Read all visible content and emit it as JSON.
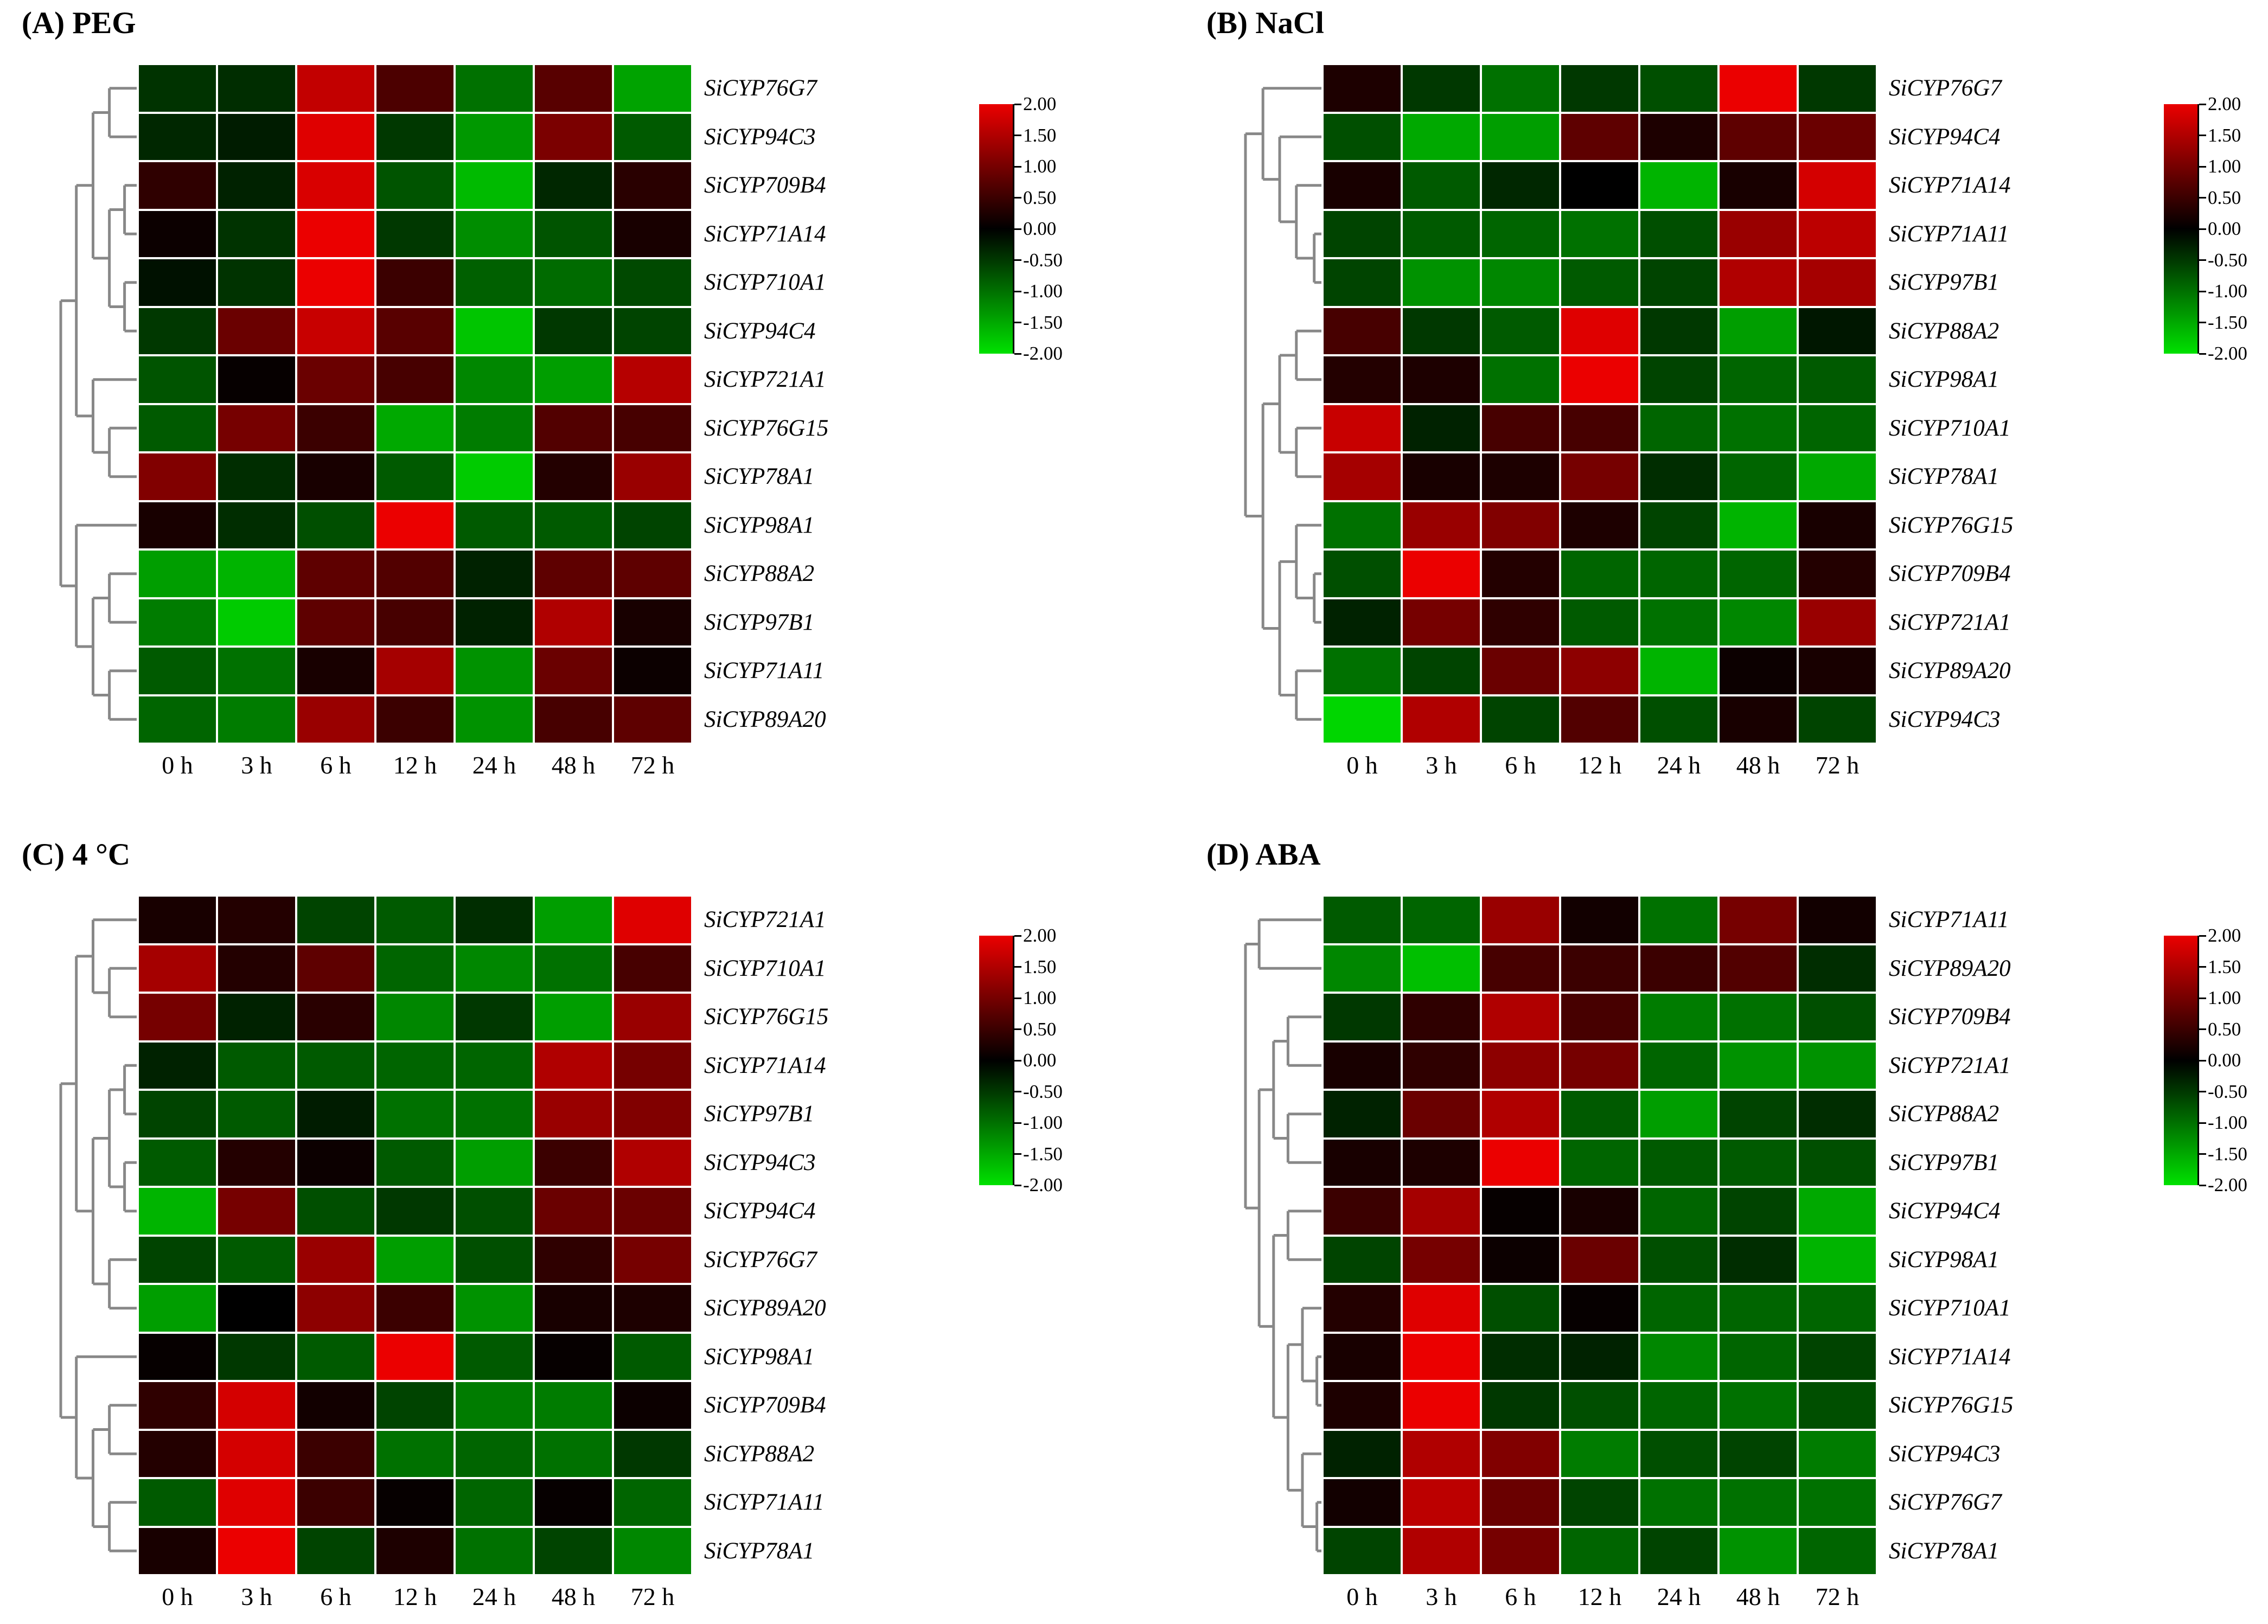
{
  "time_labels": [
    "0 h",
    "3 h",
    "6 h",
    "12 h",
    "24 h",
    "48 h",
    "72 h"
  ],
  "colorbar": {
    "min": -2,
    "max": 2,
    "tick_labels": [
      "2.00",
      "1.50",
      "1.00",
      "0.50",
      "0.00",
      "-0.50",
      "-1.00",
      "-1.50",
      "-2.00"
    ]
  },
  "colors": {
    "heat_positive_max": "#eb0000",
    "heat_zero": "#000000",
    "heat_negative_max": "#00e100",
    "dendrogram_line": "#888888",
    "background": "#ffffff"
  },
  "chart_data": [
    {
      "type": "heatmap",
      "panel": "A",
      "title": "(A) PEG",
      "x": [
        "0 h",
        "3 h",
        "6 h",
        "12 h",
        "24 h",
        "48 h",
        "72 h"
      ],
      "genes": [
        "SiCYP76G7",
        "SiCYP94C3",
        "SiCYP709B4",
        "SiCYP71A14",
        "SiCYP710A1",
        "SiCYP94C4",
        "SiCYP721A1",
        "SiCYP76G15",
        "SiCYP78A1",
        "SiCYP98A1",
        "SiCYP88A2",
        "SiCYP97B1",
        "SiCYP71A11",
        "SiCYP89A20"
      ],
      "values": [
        [
          -0.45,
          -0.4,
          1.65,
          0.65,
          -1.0,
          0.75,
          -1.45
        ],
        [
          -0.35,
          -0.25,
          1.9,
          -0.5,
          -1.35,
          1.05,
          -0.8
        ],
        [
          0.4,
          -0.3,
          1.85,
          -0.75,
          -1.65,
          -0.35,
          0.35
        ],
        [
          0.1,
          -0.45,
          2.0,
          -0.5,
          -1.25,
          -0.75,
          0.2
        ],
        [
          -0.15,
          -0.45,
          2.0,
          0.5,
          -0.85,
          -0.95,
          -0.65
        ],
        [
          -0.5,
          0.9,
          1.7,
          0.75,
          -1.75,
          -0.5,
          -0.6
        ],
        [
          -0.75,
          0.05,
          0.9,
          0.6,
          -1.2,
          -1.4,
          1.55
        ],
        [
          -0.8,
          1.0,
          0.5,
          -1.5,
          -1.1,
          0.7,
          0.6
        ],
        [
          1.1,
          -0.4,
          0.2,
          -0.8,
          -1.8,
          0.3,
          1.3
        ],
        [
          0.2,
          -0.4,
          -0.7,
          2.0,
          -0.8,
          -0.8,
          -0.6
        ],
        [
          -1.4,
          -1.6,
          0.8,
          0.7,
          -0.3,
          0.8,
          0.8
        ],
        [
          -1.1,
          -1.8,
          0.8,
          0.6,
          -0.3,
          1.5,
          0.2
        ],
        [
          -0.8,
          -1.0,
          0.2,
          1.4,
          -1.3,
          0.9,
          0.1
        ],
        [
          -0.9,
          -1.1,
          1.3,
          0.5,
          -1.3,
          0.6,
          0.8
        ]
      ],
      "dendrogram": [
        1.0,
        [
          0.795,
          [
            0.575,
            [
              0.36,
              0,
              1
            ],
            [
              0.36,
              [
                0.16,
                2,
                3
              ],
              [
                0.16,
                4,
                5
              ]
            ]
          ],
          [
            0.575,
            6,
            [
              0.36,
              7,
              8
            ]
          ]
        ],
        [
          0.795,
          9,
          [
            0.575,
            [
              0.36,
              10,
              11
            ],
            [
              0.36,
              12,
              13
            ]
          ]
        ]
      ]
    },
    {
      "type": "heatmap",
      "panel": "B",
      "title": "(B) NaCl",
      "x": [
        "0 h",
        "3 h",
        "6 h",
        "12 h",
        "24 h",
        "48 h",
        "72 h"
      ],
      "genes": [
        "SiCYP76G7",
        "SiCYP94C4",
        "SiCYP71A14",
        "SiCYP71A11",
        "SiCYP97B1",
        "SiCYP88A2",
        "SiCYP98A1",
        "SiCYP710A1",
        "SiCYP78A1",
        "SiCYP76G15",
        "SiCYP709B4",
        "SiCYP721A1",
        "SiCYP89A20",
        "SiCYP94C3"
      ],
      "values": [
        [
          0.25,
          -0.5,
          -1.0,
          -0.5,
          -0.7,
          2.0,
          -0.5
        ],
        [
          -0.7,
          -1.5,
          -1.4,
          0.8,
          0.25,
          0.8,
          0.9
        ],
        [
          0.2,
          -0.8,
          -0.35,
          0.0,
          -1.6,
          0.2,
          1.8
        ],
        [
          -0.6,
          -0.8,
          -0.9,
          -1.0,
          -0.7,
          1.3,
          1.6
        ],
        [
          -0.6,
          -1.3,
          -1.2,
          -0.8,
          -0.6,
          1.5,
          1.4
        ],
        [
          0.6,
          -0.5,
          -0.8,
          1.9,
          -0.5,
          -1.4,
          -0.2
        ],
        [
          0.3,
          0.25,
          -1.0,
          2.0,
          -0.6,
          -0.9,
          -0.8
        ],
        [
          1.7,
          -0.3,
          0.6,
          0.6,
          -0.9,
          -1.0,
          -0.9
        ],
        [
          1.4,
          0.2,
          0.25,
          1.0,
          -0.4,
          -0.9,
          -1.5
        ],
        [
          -1.0,
          1.3,
          1.1,
          0.25,
          -0.6,
          -1.6,
          0.2
        ],
        [
          -0.7,
          2.0,
          0.3,
          -0.9,
          -0.9,
          -0.9,
          0.3
        ],
        [
          -0.3,
          1.0,
          0.4,
          -0.8,
          -1.0,
          -1.2,
          1.3
        ],
        [
          -1.0,
          -0.6,
          0.9,
          1.2,
          -1.6,
          0.1,
          0.2
        ],
        [
          -1.9,
          1.5,
          -0.6,
          0.7,
          -0.7,
          0.2,
          -0.6
        ]
      ],
      "dendrogram": [
        1.0,
        [
          0.77,
          0,
          [
            0.55,
            1,
            [
              0.33,
              2,
              [
                0.095,
                3,
                4
              ]
            ]
          ]
        ],
        [
          0.77,
          [
            0.55,
            [
              0.33,
              5,
              6
            ],
            [
              0.33,
              7,
              8
            ]
          ],
          [
            0.55,
            [
              0.33,
              9,
              [
                0.095,
                10,
                11
              ]
            ],
            [
              0.33,
              12,
              13
            ]
          ]
        ]
      ]
    },
    {
      "type": "heatmap",
      "panel": "C",
      "title": "(C) 4 °C",
      "x": [
        "0 h",
        "3 h",
        "6 h",
        "12 h",
        "24 h",
        "48 h",
        "72 h"
      ],
      "genes": [
        "SiCYP721A1",
        "SiCYP710A1",
        "SiCYP76G15",
        "SiCYP71A14",
        "SiCYP97B1",
        "SiCYP94C3",
        "SiCYP94C4",
        "SiCYP76G7",
        "SiCYP89A20",
        "SiCYP98A1",
        "SiCYP709B4",
        "SiCYP88A2",
        "SiCYP71A11",
        "SiCYP78A1"
      ],
      "values": [
        [
          0.2,
          0.3,
          -0.6,
          -0.8,
          -0.4,
          -1.4,
          1.9
        ],
        [
          1.4,
          0.3,
          0.8,
          -0.9,
          -1.2,
          -1.0,
          0.6
        ],
        [
          1.0,
          -0.3,
          0.35,
          -1.2,
          -0.5,
          -1.4,
          1.3
        ],
        [
          -0.3,
          -0.8,
          -0.8,
          -0.9,
          -0.9,
          1.5,
          1.0
        ],
        [
          -0.6,
          -0.8,
          -0.25,
          -1.0,
          -1.0,
          1.3,
          1.1
        ],
        [
          -0.8,
          0.3,
          0.1,
          -0.8,
          -1.4,
          0.5,
          1.5
        ],
        [
          -1.6,
          1.0,
          -0.7,
          -0.5,
          -0.7,
          0.9,
          0.9
        ],
        [
          -0.6,
          -0.8,
          1.3,
          -1.4,
          -0.7,
          0.4,
          1.0
        ],
        [
          -1.4,
          0.0,
          1.2,
          0.5,
          -1.3,
          0.2,
          0.25
        ],
        [
          0.05,
          -0.5,
          -0.8,
          2.0,
          -0.8,
          0.05,
          -0.8
        ],
        [
          0.4,
          1.8,
          0.15,
          -0.6,
          -1.1,
          -1.1,
          0.1
        ],
        [
          0.3,
          1.8,
          0.5,
          -1.0,
          -0.9,
          -1.0,
          -0.5
        ],
        [
          -0.8,
          1.9,
          0.5,
          0.05,
          -0.9,
          0.05,
          -0.9
        ],
        [
          0.2,
          2.0,
          -0.6,
          0.25,
          -1.0,
          -0.6,
          -1.2
        ]
      ],
      "dendrogram": [
        1.0,
        [
          0.795,
          [
            0.575,
            0,
            [
              0.36,
              1,
              2
            ]
          ],
          [
            0.575,
            [
              0.36,
              [
                0.16,
                3,
                4
              ],
              [
                0.16,
                5,
                6
              ]
            ],
            [
              0.36,
              7,
              8
            ]
          ]
        ],
        [
          0.795,
          9,
          [
            0.575,
            [
              0.36,
              10,
              11
            ],
            [
              0.36,
              12,
              13
            ]
          ]
        ]
      ]
    },
    {
      "type": "heatmap",
      "panel": "D",
      "title": "(D) ABA",
      "x": [
        "0 h",
        "3 h",
        "6 h",
        "12 h",
        "24 h",
        "48 h",
        "72 h"
      ],
      "genes": [
        "SiCYP71A11",
        "SiCYP89A20",
        "SiCYP709B4",
        "SiCYP721A1",
        "SiCYP88A2",
        "SiCYP97B1",
        "SiCYP94C4",
        "SiCYP98A1",
        "SiCYP710A1",
        "SiCYP71A14",
        "SiCYP76G15",
        "SiCYP94C3",
        "SiCYP76G7",
        "SiCYP78A1"
      ],
      "values": [
        [
          -0.8,
          -0.9,
          1.3,
          0.15,
          -1.0,
          1.0,
          0.15
        ],
        [
          -1.2,
          -1.7,
          0.6,
          0.5,
          0.5,
          0.7,
          -0.4
        ],
        [
          -0.5,
          0.4,
          1.5,
          0.6,
          -1.1,
          -1.0,
          -0.7
        ],
        [
          0.2,
          0.4,
          1.2,
          1.0,
          -0.9,
          -1.3,
          -1.3
        ],
        [
          -0.3,
          0.9,
          1.5,
          -0.8,
          -1.4,
          -0.6,
          -0.4
        ],
        [
          0.2,
          0.25,
          2.0,
          -0.9,
          -0.8,
          -0.8,
          -0.7
        ],
        [
          0.5,
          1.4,
          0.05,
          0.2,
          -0.9,
          -0.6,
          -1.5
        ],
        [
          -0.6,
          1.0,
          0.1,
          0.9,
          -0.7,
          -0.4,
          -1.6
        ],
        [
          0.3,
          1.9,
          -0.7,
          0.05,
          -0.9,
          -0.9,
          -0.9
        ],
        [
          0.2,
          2.0,
          -0.4,
          -0.3,
          -1.2,
          -0.9,
          -0.6
        ],
        [
          0.25,
          2.0,
          -0.5,
          -0.7,
          -0.9,
          -1.0,
          -0.7
        ],
        [
          -0.3,
          1.5,
          1.1,
          -1.1,
          -0.7,
          -0.6,
          -1.1
        ],
        [
          0.15,
          1.6,
          0.9,
          -0.6,
          -1.0,
          -1.0,
          -1.0
        ],
        [
          -0.6,
          1.5,
          1.0,
          -0.9,
          -0.6,
          -1.3,
          -0.9
        ]
      ],
      "dendrogram": [
        1.0,
        [
          0.82,
          0,
          1
        ],
        [
          0.82,
          [
            0.63,
            [
              0.44,
              2,
              3
            ],
            [
              0.44,
              4,
              5
            ]
          ],
          [
            0.63,
            [
              0.44,
              6,
              7
            ],
            [
              0.44,
              [
                0.25,
                8,
                [
                  0.06,
                  9,
                  10
                ]
              ],
              [
                0.25,
                11,
                [
                  0.06,
                  12,
                  13
                ]
              ]
            ]
          ]
        ]
      ]
    }
  ]
}
